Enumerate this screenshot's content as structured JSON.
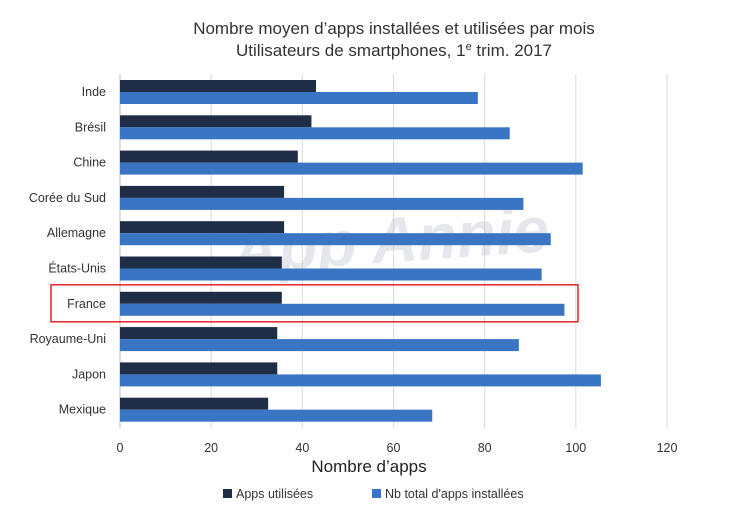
{
  "chart_data": {
    "type": "bar",
    "orientation": "horizontal",
    "title_line1": "Nombre moyen d’apps installées et utilisées par mois",
    "title_line2_main": "Utilisateurs de smartphones, 1",
    "title_line2_sup": "e",
    "title_line2_end": " trim. 2017",
    "xlabel": "Nombre d’apps",
    "xlim": [
      0,
      120
    ],
    "xticks": [
      "0",
      "20",
      "40",
      "60",
      "80",
      "100",
      "120"
    ],
    "grid": true,
    "legend_position": "bottom",
    "categories": [
      "Inde",
      "Brésil",
      "Chine",
      "Corée du Sud",
      "Allemagne",
      "États-Unis",
      "France",
      "Royaume-Uni",
      "Japon",
      "Mexique"
    ],
    "series": [
      {
        "name": "Apps utilisées",
        "color": "#1f2d47",
        "values": [
          43,
          42,
          39,
          36,
          36,
          35.5,
          35.5,
          34.5,
          34.5,
          32.5
        ]
      },
      {
        "name": "Nb total d'apps installées",
        "color": "#3a75c4",
        "values": [
          78.5,
          85.5,
          101.5,
          88.5,
          94.5,
          92.5,
          97.5,
          87.5,
          105.5,
          68.5
        ]
      }
    ],
    "highlight_category": "France",
    "highlight_color": "#e0262c",
    "watermark": "App Annie"
  }
}
